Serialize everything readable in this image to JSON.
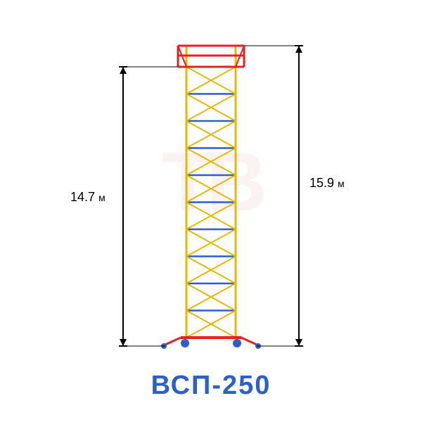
{
  "product": {
    "name": "ВСП-250",
    "label_color": "#2b5fc9"
  },
  "watermark": "ТВ",
  "tower": {
    "sections": 10,
    "top_deck_color": "#e62020",
    "bottom_deck_color": "#e62020",
    "rail_color": "#e6b800",
    "brace_color": "#e6b800",
    "rung_color": "#2b5fc9",
    "outrigger_color": "#e62020",
    "wheel_color": "#2b5fc9"
  },
  "dimensions": {
    "left_height": {
      "value": "14.7",
      "unit": "м"
    },
    "right_height": {
      "value": "15.9",
      "unit": "м"
    },
    "line_color": "#000000",
    "arrow_size": 10
  },
  "background_color": "#ffffff"
}
